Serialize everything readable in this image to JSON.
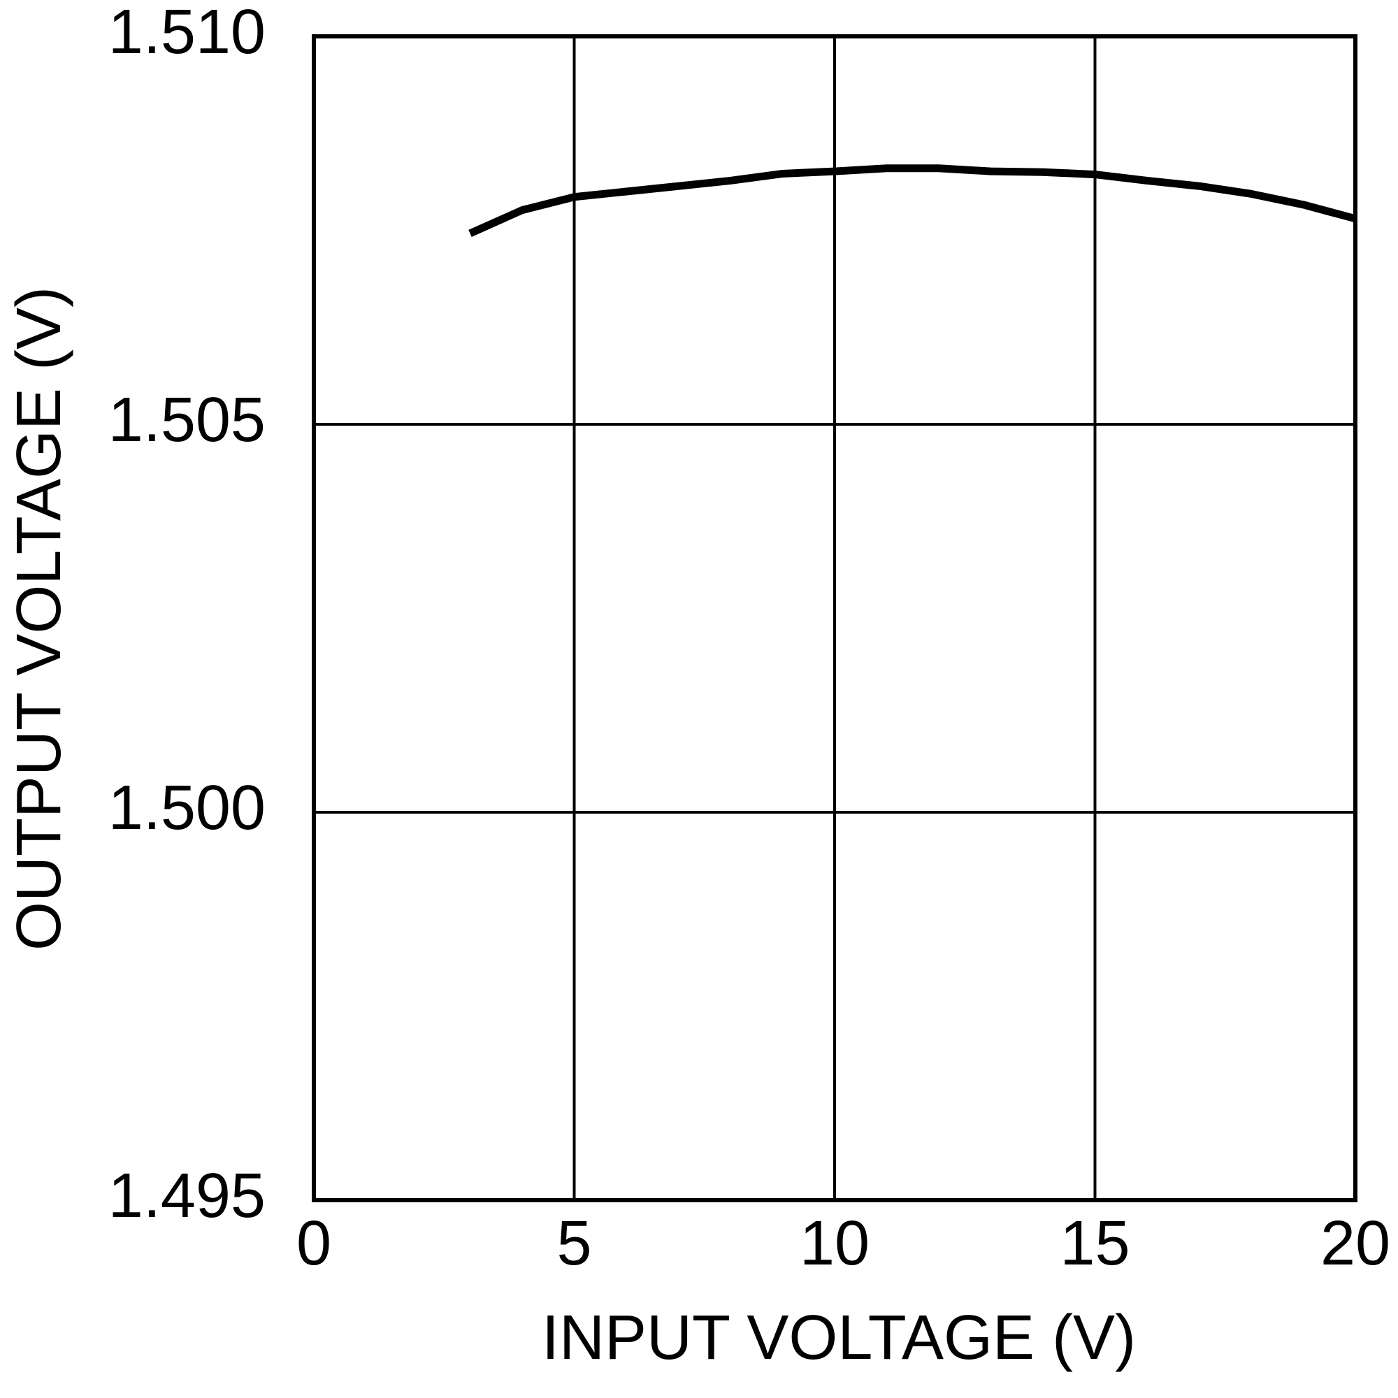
{
  "chart_data": {
    "type": "line",
    "x_label": "INPUT VOLTAGE (V)",
    "y_label": "OUTPUT VOLTAGE (V)",
    "x": [
      3,
      4,
      5,
      6,
      7,
      8,
      9,
      10,
      11,
      12,
      13,
      14,
      15,
      16,
      17,
      18,
      19,
      20
    ],
    "series": [
      {
        "color": "#000000",
        "values": [
          1.50746,
          1.50776,
          1.50793,
          1.508,
          1.50807,
          1.50814,
          1.50823,
          1.50826,
          1.5083,
          1.5083,
          1.50826,
          1.50825,
          1.50822,
          1.50814,
          1.50807,
          1.50797,
          1.50783,
          1.50765
        ]
      }
    ],
    "xlim": [
      0,
      20
    ],
    "xticks": [
      0,
      5,
      10,
      15,
      20
    ],
    "ylim": [
      1.495,
      1.51
    ],
    "yticks": [
      1.495,
      {
        "value": 1.5,
        "label": "1.500"
      },
      1.505,
      {
        "value": 1.51,
        "label": "1.510"
      }
    ],
    "grid": true
  }
}
